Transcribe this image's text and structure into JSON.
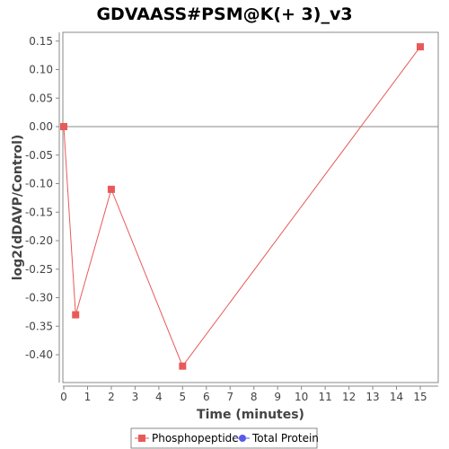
{
  "chart_data": {
    "type": "line",
    "title": "GDVAASS#PSM@K(+ 3)_v3",
    "xlabel": "Time (minutes)",
    "ylabel": "log2(dDAVP/Control)",
    "xlim": [
      0,
      15.75
    ],
    "ylim": [
      -0.45,
      0.16
    ],
    "xticks": [
      0,
      1,
      2,
      3,
      4,
      5,
      6,
      7,
      8,
      9,
      10,
      11,
      12,
      13,
      14,
      15
    ],
    "yticks": [
      0.15,
      0.1,
      0.05,
      0.0,
      -0.05,
      -0.1,
      -0.15,
      -0.2,
      -0.25,
      -0.3,
      -0.35,
      -0.4
    ],
    "ytick_labels": [
      "0.15",
      "0.10",
      "0.05",
      "0.00",
      "-0.05",
      "-0.10",
      "-0.15",
      "-0.20",
      "-0.25",
      "-0.30",
      "-0.35",
      "-0.40"
    ],
    "zero_line": true,
    "grid": false,
    "legend_position": "bottom",
    "series": [
      {
        "name": "Phosphopeptide",
        "color": "#e85a5a",
        "marker": "square",
        "x": [
          0,
          0.5,
          2,
          5,
          15
        ],
        "y": [
          0.0,
          -0.33,
          -0.11,
          -0.42,
          0.14
        ]
      },
      {
        "name": "Total Protein",
        "color": "#5a5ae8",
        "marker": "circle",
        "x": [],
        "y": []
      }
    ]
  }
}
